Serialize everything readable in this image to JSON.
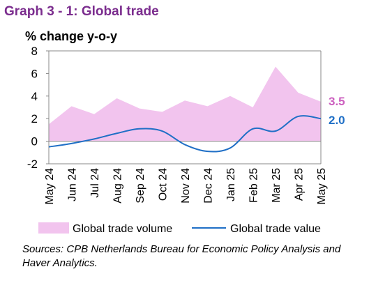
{
  "title": "Graph 3 - 1: Global trade",
  "source": "Sources: CPB Netherlands Bureau for Economic Policy Analysis and Haver Analytics.",
  "colors": {
    "title": "#7b2d8e",
    "volume_fill": "#f2c4ee",
    "volume_label": "#cc5fbf",
    "value_line": "#1f6fc6",
    "value_label": "#1f6fc6"
  },
  "chart_data": {
    "type": "area",
    "ylabel": "% change y-o-y",
    "xlabel": "",
    "ylim": [
      -2,
      8
    ],
    "yticks": [
      "-2",
      "0",
      "2",
      "4",
      "6",
      "8"
    ],
    "grid": false,
    "legend_position": "bottom",
    "categories": [
      "May 24",
      "Jun 24",
      "Jul 24",
      "Aug 24",
      "Sep 24",
      "Oct 24",
      "Nov 24",
      "Dec 24",
      "Jan 25",
      "Feb 25",
      "Mar 25",
      "Apr 25",
      "May 25"
    ],
    "series": [
      {
        "name": "Global trade volume",
        "type": "area",
        "values": [
          1.5,
          3.1,
          2.4,
          3.8,
          2.9,
          2.6,
          3.6,
          3.1,
          4.0,
          3.0,
          6.6,
          4.3,
          3.5
        ],
        "end_label": "3.5"
      },
      {
        "name": "Global trade value",
        "type": "line",
        "values": [
          -0.5,
          -0.2,
          0.2,
          0.7,
          1.1,
          0.9,
          -0.3,
          -0.9,
          -0.6,
          1.1,
          0.9,
          2.2,
          2.0
        ],
        "end_label": "2.0"
      }
    ]
  }
}
